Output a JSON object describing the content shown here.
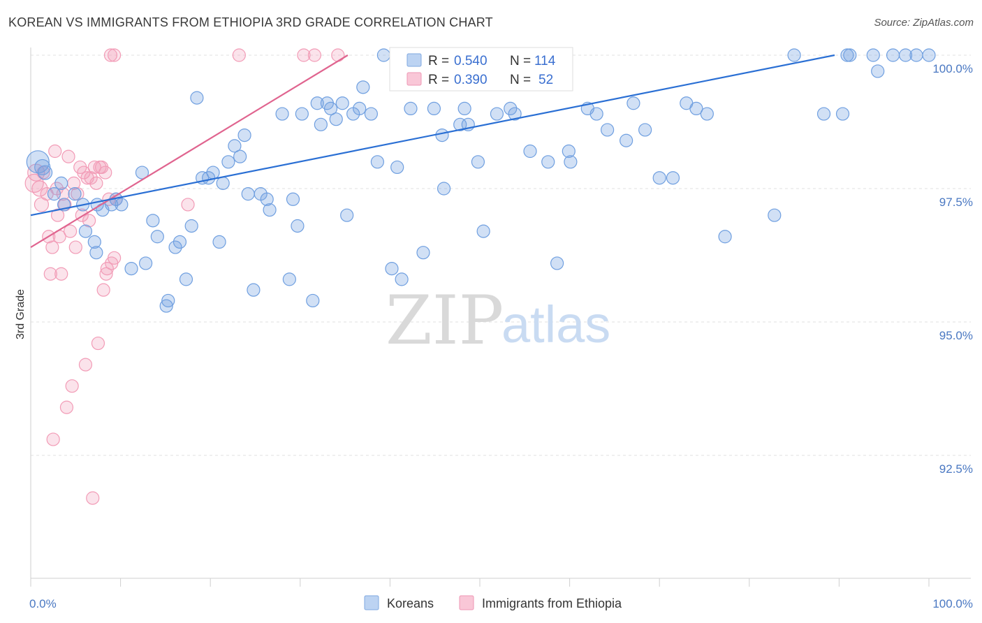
{
  "header": {
    "title": "KOREAN VS IMMIGRANTS FROM ETHIOPIA 3RD GRADE CORRELATION CHART",
    "source": "Source: ZipAtlas.com"
  },
  "watermark": {
    "zip": "ZIP",
    "atlas": "atlas"
  },
  "colors": {
    "koreans": "#6f9fe0",
    "koreans_line": "#2a6fd4",
    "ethiopia": "#f29bb6",
    "ethiopia_line": "#e0648f",
    "tick_label": "#4a78c2",
    "grid": "#e2e2e2"
  },
  "legend": {
    "rows": [
      {
        "r_label": "R = ",
        "r_value": "0.540",
        "n_label": "N = ",
        "n_value": "114"
      },
      {
        "r_label": "R = ",
        "r_value": "0.390",
        "n_label": "N = ",
        "n_value": "52"
      }
    ]
  },
  "chart_data": {
    "type": "scatter",
    "ylabel": "3rd Grade",
    "xlabel": "",
    "xlim": [
      0,
      100
    ],
    "ylim": [
      90.4,
      100.5
    ],
    "y_ticks": [
      {
        "value": 100.0,
        "label": "100.0%"
      },
      {
        "value": 97.5,
        "label": "97.5%"
      },
      {
        "value": 95.0,
        "label": "95.0%"
      },
      {
        "value": 92.5,
        "label": "92.5%"
      }
    ],
    "x_tick_labels": [
      {
        "value": 0,
        "label": "0.0%"
      },
      {
        "value": 100,
        "label": "100.0%"
      }
    ],
    "grid": true,
    "legend_position": "top-center",
    "series": [
      {
        "name": "Koreans",
        "trend": {
          "x": [
            0,
            89.5
          ],
          "y": [
            97.0,
            100.0
          ]
        },
        "points": [
          [
            0.8,
            98.0,
            16
          ],
          [
            1.3,
            97.9,
            11
          ],
          [
            1.6,
            97.8,
            10
          ],
          [
            2.6,
            97.4,
            9
          ],
          [
            3.4,
            97.6,
            9
          ],
          [
            3.7,
            97.2,
            9
          ],
          [
            4.9,
            97.4,
            9
          ],
          [
            5.8,
            97.2,
            9
          ],
          [
            6.1,
            96.7,
            9
          ],
          [
            7.1,
            96.5,
            9
          ],
          [
            7.3,
            96.3,
            9
          ],
          [
            7.4,
            97.2,
            9
          ],
          [
            8.0,
            97.1,
            9
          ],
          [
            9.0,
            97.2,
            9
          ],
          [
            9.5,
            97.3,
            9
          ],
          [
            10.1,
            97.2,
            9
          ],
          [
            11.2,
            96.0,
            9
          ],
          [
            12.4,
            97.8,
            9
          ],
          [
            12.8,
            96.1,
            9
          ],
          [
            13.6,
            96.9,
            9
          ],
          [
            14.1,
            96.6,
            9
          ],
          [
            15.1,
            95.3,
            9
          ],
          [
            15.3,
            95.4,
            9
          ],
          [
            16.1,
            96.4,
            9
          ],
          [
            16.6,
            96.5,
            9
          ],
          [
            17.3,
            95.8,
            9
          ],
          [
            17.9,
            96.8,
            9
          ],
          [
            18.5,
            99.2,
            9
          ],
          [
            19.1,
            97.7,
            9
          ],
          [
            19.8,
            97.7,
            9
          ],
          [
            20.3,
            97.8,
            9
          ],
          [
            21.0,
            96.5,
            9
          ],
          [
            21.4,
            97.6,
            9
          ],
          [
            22.0,
            98.0,
            9
          ],
          [
            22.7,
            98.3,
            9
          ],
          [
            23.3,
            98.1,
            9
          ],
          [
            23.8,
            98.5,
            9
          ],
          [
            24.2,
            97.4,
            9
          ],
          [
            24.8,
            95.6,
            9
          ],
          [
            25.6,
            97.4,
            9
          ],
          [
            26.3,
            97.3,
            9
          ],
          [
            26.6,
            97.1,
            9
          ],
          [
            28.0,
            98.9,
            9
          ],
          [
            28.8,
            95.8,
            9
          ],
          [
            29.2,
            97.3,
            9
          ],
          [
            29.7,
            96.8,
            9
          ],
          [
            30.2,
            98.9,
            9
          ],
          [
            31.4,
            95.4,
            9
          ],
          [
            31.9,
            99.1,
            9
          ],
          [
            32.3,
            98.7,
            9
          ],
          [
            33.0,
            99.1,
            9
          ],
          [
            33.4,
            99.0,
            9
          ],
          [
            34.0,
            98.8,
            9
          ],
          [
            34.7,
            99.1,
            9
          ],
          [
            35.2,
            97.0,
            9
          ],
          [
            35.9,
            98.9,
            9
          ],
          [
            36.6,
            99.0,
            9
          ],
          [
            37.0,
            99.4,
            9
          ],
          [
            37.9,
            98.9,
            9
          ],
          [
            38.6,
            98.0,
            9
          ],
          [
            39.3,
            100.0,
            9
          ],
          [
            40.2,
            96.0,
            9
          ],
          [
            40.8,
            97.9,
            9
          ],
          [
            41.3,
            95.8,
            9
          ],
          [
            42.3,
            99.0,
            9
          ],
          [
            43.1,
            100.0,
            9
          ],
          [
            43.7,
            96.3,
            9
          ],
          [
            44.1,
            100.0,
            9
          ],
          [
            44.7,
            100.0,
            9
          ],
          [
            44.9,
            99.0,
            9
          ],
          [
            45.8,
            98.5,
            9
          ],
          [
            46.0,
            97.5,
            9
          ],
          [
            47.8,
            98.7,
            9
          ],
          [
            48.3,
            99.0,
            9
          ],
          [
            48.7,
            98.7,
            9
          ],
          [
            49.3,
            100.0,
            9
          ],
          [
            49.8,
            98.0,
            9
          ],
          [
            50.4,
            96.7,
            9
          ],
          [
            51.0,
            100.0,
            9
          ],
          [
            51.9,
            98.9,
            9
          ],
          [
            52.2,
            100.0,
            9
          ],
          [
            53.4,
            99.0,
            9
          ],
          [
            53.9,
            98.9,
            9
          ],
          [
            55.6,
            98.2,
            9
          ],
          [
            57.6,
            98.0,
            9
          ],
          [
            58.0,
            100.0,
            9
          ],
          [
            58.6,
            96.1,
            9
          ],
          [
            59.9,
            98.2,
            9
          ],
          [
            60.1,
            98.0,
            9
          ],
          [
            62.0,
            99.0,
            9
          ],
          [
            63.0,
            98.9,
            9
          ],
          [
            64.2,
            98.6,
            9
          ],
          [
            66.3,
            98.4,
            9
          ],
          [
            67.1,
            99.1,
            9
          ],
          [
            68.4,
            98.6,
            9
          ],
          [
            70.0,
            97.7,
            9
          ],
          [
            71.5,
            97.7,
            9
          ],
          [
            73.0,
            99.1,
            9
          ],
          [
            74.1,
            99.0,
            9
          ],
          [
            75.3,
            98.9,
            9
          ],
          [
            77.3,
            96.6,
            9
          ],
          [
            82.8,
            97.0,
            9
          ],
          [
            88.3,
            98.9,
            9
          ],
          [
            90.4,
            98.9,
            9
          ],
          [
            90.9,
            100.0,
            9
          ],
          [
            91.2,
            100.0,
            9
          ],
          [
            93.8,
            100.0,
            9
          ],
          [
            94.3,
            99.7,
            9
          ],
          [
            96.0,
            100.0,
            9
          ],
          [
            97.4,
            100.0,
            9
          ],
          [
            98.6,
            100.0,
            9
          ],
          [
            100.0,
            100.0,
            9
          ],
          [
            85.0,
            100.0,
            9
          ],
          [
            47.2,
            100.0,
            9
          ]
        ]
      },
      {
        "name": "Immigrants from Ethiopia",
        "trend": {
          "x": [
            0,
            35.3
          ],
          "y": [
            96.4,
            100.0
          ]
        },
        "points": [
          [
            0.4,
            97.6,
            13
          ],
          [
            0.6,
            97.8,
            12
          ],
          [
            1.0,
            97.5,
            11
          ],
          [
            1.2,
            97.2,
            10
          ],
          [
            1.4,
            97.8,
            9
          ],
          [
            1.8,
            97.4,
            9
          ],
          [
            2.0,
            96.6,
            9
          ],
          [
            2.2,
            95.9,
            9
          ],
          [
            2.4,
            96.4,
            9
          ],
          [
            2.5,
            92.8,
            9
          ],
          [
            2.7,
            98.2,
            9
          ],
          [
            2.9,
            97.5,
            9
          ],
          [
            3.0,
            97.0,
            9
          ],
          [
            3.2,
            96.6,
            9
          ],
          [
            3.4,
            95.9,
            9
          ],
          [
            3.6,
            97.4,
            9
          ],
          [
            3.8,
            97.2,
            9
          ],
          [
            4.0,
            93.4,
            9
          ],
          [
            4.2,
            98.1,
            9
          ],
          [
            4.4,
            96.7,
            9
          ],
          [
            4.6,
            93.8,
            9
          ],
          [
            4.8,
            97.6,
            9
          ],
          [
            5.0,
            96.4,
            9
          ],
          [
            5.2,
            97.4,
            9
          ],
          [
            5.5,
            97.9,
            9
          ],
          [
            5.7,
            97.0,
            9
          ],
          [
            5.9,
            97.8,
            9
          ],
          [
            6.1,
            94.2,
            9
          ],
          [
            6.3,
            97.7,
            9
          ],
          [
            6.5,
            96.9,
            9
          ],
          [
            6.7,
            97.7,
            9
          ],
          [
            6.9,
            91.7,
            9
          ],
          [
            7.1,
            97.9,
            9
          ],
          [
            7.3,
            97.6,
            9
          ],
          [
            7.5,
            94.6,
            9
          ],
          [
            7.7,
            97.9,
            9
          ],
          [
            7.9,
            97.9,
            9
          ],
          [
            8.1,
            95.6,
            9
          ],
          [
            8.3,
            97.8,
            9
          ],
          [
            8.5,
            96.0,
            9
          ],
          [
            8.7,
            97.3,
            9
          ],
          [
            9.0,
            96.1,
            9
          ],
          [
            9.3,
            96.2,
            9
          ],
          [
            9.5,
            97.3,
            9
          ],
          [
            8.4,
            95.9,
            9
          ],
          [
            8.9,
            100.0,
            9
          ],
          [
            9.3,
            100.0,
            9
          ],
          [
            17.5,
            97.2,
            9
          ],
          [
            23.2,
            100.0,
            9
          ],
          [
            30.4,
            100.0,
            9
          ],
          [
            31.6,
            100.0,
            9
          ],
          [
            34.2,
            100.0,
            9
          ]
        ]
      }
    ]
  },
  "bottom_legend": [
    {
      "label": "Koreans"
    },
    {
      "label": "Immigrants from Ethiopia"
    }
  ]
}
